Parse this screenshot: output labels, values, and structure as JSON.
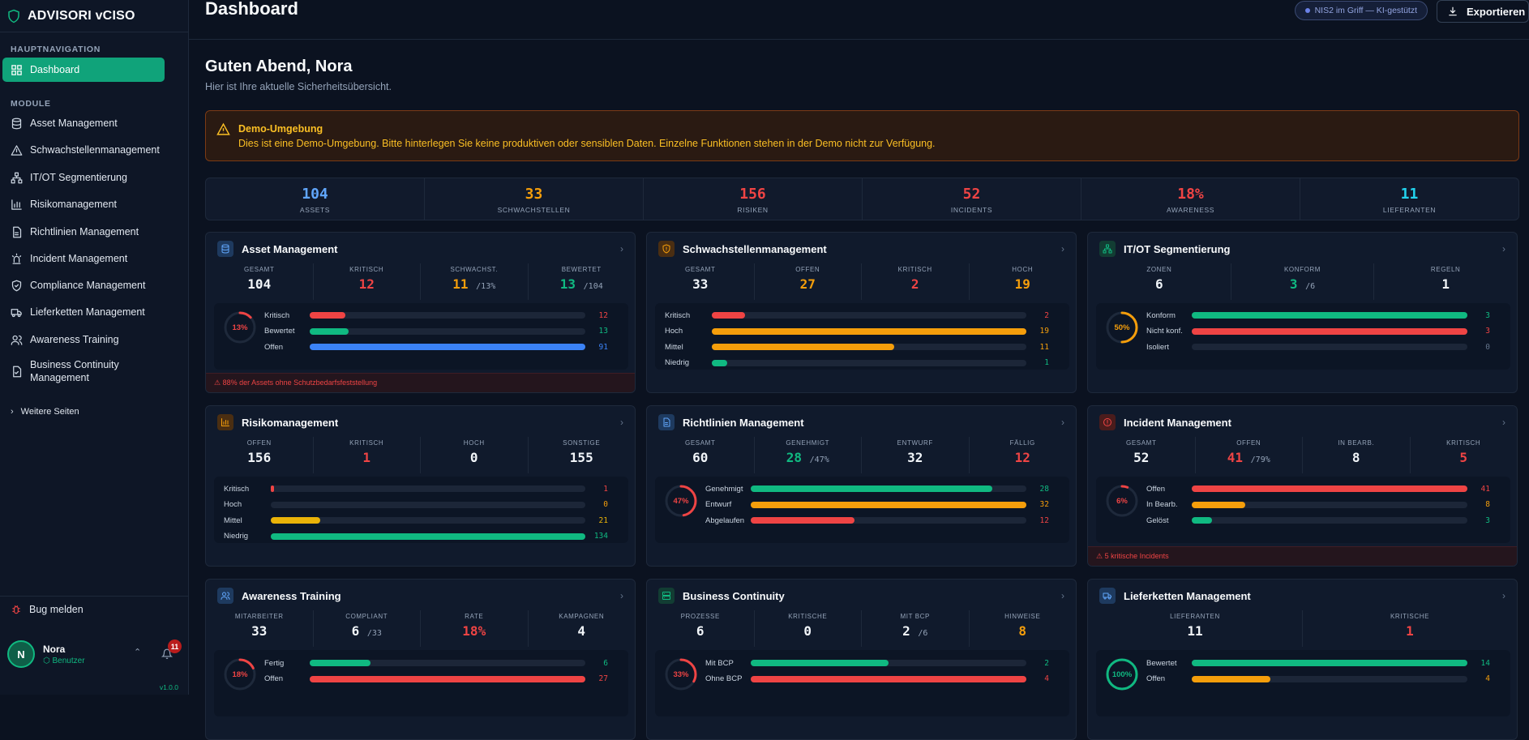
{
  "brand": {
    "name": "ADVISORI vCISO"
  },
  "sidebar": {
    "main_section": "HAUPTNAVIGATION",
    "dashboard": "Dashboard",
    "modules_section": "MODULE",
    "items": [
      {
        "label": "Asset Management",
        "icon": "database-icon"
      },
      {
        "label": "Schwachstellenmanagement",
        "icon": "warning-triangle-icon"
      },
      {
        "label": "IT/OT Segmentierung",
        "icon": "network-icon"
      },
      {
        "label": "Risikomanagement",
        "icon": "bar-chart-icon"
      },
      {
        "label": "Richtlinien Management",
        "icon": "document-icon"
      },
      {
        "label": "Incident Management",
        "icon": "siren-icon"
      },
      {
        "label": "Compliance Management",
        "icon": "shield-check-icon"
      },
      {
        "label": "Lieferketten Management",
        "icon": "truck-icon"
      },
      {
        "label": "Awareness Training",
        "icon": "users-icon"
      },
      {
        "label": "Business Continuity Management",
        "icon": "file-check-icon"
      }
    ],
    "more": "Weitere Seiten",
    "bug": "Bug melden",
    "user": {
      "initial": "N",
      "name": "Nora",
      "role": "Benutzer",
      "notifications": "11"
    },
    "version": "v1.0.0"
  },
  "header": {
    "title": "Dashboard",
    "pill": "NIS2 im Griff — KI-gestützt",
    "export": "Exportieren"
  },
  "greeting": {
    "title": "Guten Abend, Nora",
    "subtitle": "Hier ist Ihre aktuelle Sicherheitsübersicht."
  },
  "demo": {
    "title": "Demo-Umgebung",
    "text": "Dies ist eine Demo-Umgebung. Bitte hinterlegen Sie keine produktiven oder sensiblen Daten. Einzelne Funktionen stehen in der Demo nicht zur Verfügung."
  },
  "colors": {
    "green": "#10b981",
    "red": "#ef4444",
    "orange": "#f59e0b",
    "blue": "#3b82f6",
    "cyan": "#22d3ee",
    "white": "#f1f5f9"
  },
  "stats": [
    {
      "value": "104",
      "label": "ASSETS",
      "color": "#60a5fa"
    },
    {
      "value": "33",
      "label": "SCHWACHSTELLEN",
      "color": "#f59e0b"
    },
    {
      "value": "156",
      "label": "RISIKEN",
      "color": "#ef4444"
    },
    {
      "value": "52",
      "label": "INCIDENTS",
      "color": "#ef4444"
    },
    {
      "value": "18%",
      "label": "AWARENESS",
      "color": "#ef4444"
    },
    {
      "value": "11",
      "label": "LIEFERANTEN",
      "color": "#22d3ee"
    }
  ],
  "cards": [
    {
      "title": "Asset Management",
      "icon": "database-icon",
      "kpis": [
        {
          "label": "GESAMT",
          "value": "104",
          "color": "#f1f5f9"
        },
        {
          "label": "KRITISCH",
          "value": "12",
          "color": "#ef4444"
        },
        {
          "label": "SCHWACHST.",
          "value": "11",
          "suffix": "/13%",
          "color": "#f59e0b"
        },
        {
          "label": "BEWERTET",
          "value": "13",
          "suffix": "/104",
          "color": "#10b981"
        }
      ],
      "ring": {
        "pct": "13%",
        "value": 0.13,
        "color": "#ef4444"
      },
      "bars": [
        {
          "label": "Kritisch",
          "count": "12",
          "fraction": 0.13,
          "color": "#ef4444"
        },
        {
          "label": "Bewertet",
          "count": "13",
          "fraction": 0.14,
          "color": "#10b981"
        },
        {
          "label": "Offen",
          "count": "91",
          "fraction": 1.0,
          "color": "#3b82f6"
        }
      ],
      "warning": "⚠ 88% der Assets ohne Schutzbedarfsfeststellung"
    },
    {
      "title": "Schwachstellenmanagement",
      "icon": "shield-alert-icon",
      "kpis": [
        {
          "label": "GESAMT",
          "value": "33",
          "color": "#f1f5f9"
        },
        {
          "label": "OFFEN",
          "value": "27",
          "color": "#f59e0b"
        },
        {
          "label": "KRITISCH",
          "value": "2",
          "color": "#ef4444"
        },
        {
          "label": "HOCH",
          "value": "19",
          "color": "#f59e0b"
        }
      ],
      "bars": [
        {
          "label": "Kritisch",
          "count": "2",
          "fraction": 0.105,
          "color": "#ef4444"
        },
        {
          "label": "Hoch",
          "count": "19",
          "fraction": 1.0,
          "color": "#f59e0b"
        },
        {
          "label": "Mittel",
          "count": "11",
          "fraction": 0.58,
          "color": "#f59e0b"
        },
        {
          "label": "Niedrig",
          "count": "1",
          "fraction": 0.05,
          "color": "#10b981"
        }
      ]
    },
    {
      "title": "IT/OT Segmentierung",
      "icon": "network-icon",
      "kpis": [
        {
          "label": "ZONEN",
          "value": "6",
          "color": "#f1f5f9"
        },
        {
          "label": "KONFORM",
          "value": "3",
          "suffix": "/6",
          "color": "#10b981"
        },
        {
          "label": "REGELN",
          "value": "1",
          "color": "#f1f5f9"
        }
      ],
      "ring": {
        "pct": "50%",
        "value": 0.5,
        "color": "#f59e0b"
      },
      "bars": [
        {
          "label": "Konform",
          "count": "3",
          "fraction": 1.0,
          "color": "#10b981"
        },
        {
          "label": "Nicht konf.",
          "count": "3",
          "fraction": 1.0,
          "color": "#ef4444"
        },
        {
          "label": "Isoliert",
          "count": "0",
          "fraction": 0,
          "color": "#64748b"
        }
      ]
    },
    {
      "title": "Risikomanagement",
      "icon": "bar-chart-icon",
      "kpis": [
        {
          "label": "OFFEN",
          "value": "156",
          "color": "#f1f5f9"
        },
        {
          "label": "KRITISCH",
          "value": "1",
          "color": "#ef4444"
        },
        {
          "label": "HOCH",
          "value": "0",
          "color": "#f1f5f9"
        },
        {
          "label": "SONSTIGE",
          "value": "155",
          "color": "#f1f5f9"
        }
      ],
      "bars": [
        {
          "label": "Kritisch",
          "count": "1",
          "fraction": 0.008,
          "color": "#ef4444"
        },
        {
          "label": "Hoch",
          "count": "0",
          "fraction": 0,
          "color": "#f59e0b"
        },
        {
          "label": "Mittel",
          "count": "21",
          "fraction": 0.157,
          "color": "#eab308"
        },
        {
          "label": "Niedrig",
          "count": "134",
          "fraction": 1.0,
          "color": "#10b981"
        }
      ]
    },
    {
      "title": "Richtlinien Management",
      "icon": "document-icon",
      "kpis": [
        {
          "label": "GESAMT",
          "value": "60",
          "color": "#f1f5f9"
        },
        {
          "label": "GENEHMIGT",
          "value": "28",
          "suffix": "/47%",
          "color": "#10b981"
        },
        {
          "label": "ENTWURF",
          "value": "32",
          "color": "#f1f5f9"
        },
        {
          "label": "FÄLLIG",
          "value": "12",
          "color": "#ef4444"
        }
      ],
      "ring": {
        "pct": "47%",
        "value": 0.47,
        "color": "#ef4444"
      },
      "bars": [
        {
          "label": "Genehmigt",
          "count": "28",
          "fraction": 0.875,
          "color": "#10b981"
        },
        {
          "label": "Entwurf",
          "count": "32",
          "fraction": 1.0,
          "color": "#f59e0b"
        },
        {
          "label": "Abgelaufen",
          "count": "12",
          "fraction": 0.375,
          "color": "#ef4444"
        }
      ]
    },
    {
      "title": "Incident Management",
      "icon": "alert-circle-icon",
      "kpis": [
        {
          "label": "GESAMT",
          "value": "52",
          "color": "#f1f5f9"
        },
        {
          "label": "OFFEN",
          "value": "41",
          "suffix": "/79%",
          "color": "#ef4444"
        },
        {
          "label": "IN BEARB.",
          "value": "8",
          "color": "#f1f5f9"
        },
        {
          "label": "KRITISCH",
          "value": "5",
          "color": "#ef4444"
        }
      ],
      "ring": {
        "pct": "6%",
        "value": 0.06,
        "color": "#ef4444"
      },
      "bars": [
        {
          "label": "Offen",
          "count": "41",
          "fraction": 1.0,
          "color": "#ef4444"
        },
        {
          "label": "In Bearb.",
          "count": "8",
          "fraction": 0.195,
          "color": "#f59e0b"
        },
        {
          "label": "Gelöst",
          "count": "3",
          "fraction": 0.073,
          "color": "#10b981"
        }
      ],
      "warning": "⚠ 5 kritische Incidents"
    },
    {
      "title": "Awareness Training",
      "icon": "users-icon",
      "kpis": [
        {
          "label": "MITARBEITER",
          "value": "33",
          "color": "#f1f5f9"
        },
        {
          "label": "COMPLIANT",
          "value": "6",
          "suffix": "/33",
          "color": "#f1f5f9"
        },
        {
          "label": "RATE",
          "value": "18%",
          "color": "#ef4444"
        },
        {
          "label": "KAMPAGNEN",
          "value": "4",
          "color": "#f1f5f9"
        }
      ],
      "ring": {
        "pct": "18%",
        "value": 0.18,
        "color": "#ef4444"
      },
      "bars": [
        {
          "label": "Fertig",
          "count": "6",
          "fraction": 0.222,
          "color": "#10b981"
        },
        {
          "label": "Offen",
          "count": "27",
          "fraction": 1.0,
          "color": "#ef4444"
        }
      ]
    },
    {
      "title": "Business Continuity",
      "icon": "server-icon",
      "kpis": [
        {
          "label": "PROZESSE",
          "value": "6",
          "color": "#f1f5f9"
        },
        {
          "label": "KRITISCHE",
          "value": "0",
          "color": "#f1f5f9"
        },
        {
          "label": "MIT BCP",
          "value": "2",
          "suffix": "/6",
          "color": "#f1f5f9"
        },
        {
          "label": "HINWEISE",
          "value": "8",
          "color": "#f59e0b"
        }
      ],
      "ring": {
        "pct": "33%",
        "value": 0.33,
        "color": "#ef4444"
      },
      "bars": [
        {
          "label": "Mit BCP",
          "count": "2",
          "fraction": 0.5,
          "color": "#10b981"
        },
        {
          "label": "Ohne BCP",
          "count": "4",
          "fraction": 1.0,
          "color": "#ef4444"
        }
      ]
    },
    {
      "title": "Lieferketten Management",
      "icon": "truck-icon",
      "kpis": [
        {
          "label": "LIEFERANTEN",
          "value": "11",
          "color": "#f1f5f9"
        },
        {
          "label": "KRITISCHE",
          "value": "1",
          "color": "#ef4444"
        }
      ],
      "ring": {
        "pct": "100%",
        "value": 1.0,
        "color": "#10b981"
      },
      "bars": [
        {
          "label": "Bewertet",
          "count": "14",
          "fraction": 1.0,
          "color": "#10b981"
        },
        {
          "label": "Offen",
          "count": "4",
          "fraction": 0.286,
          "color": "#f59e0b"
        }
      ]
    }
  ]
}
